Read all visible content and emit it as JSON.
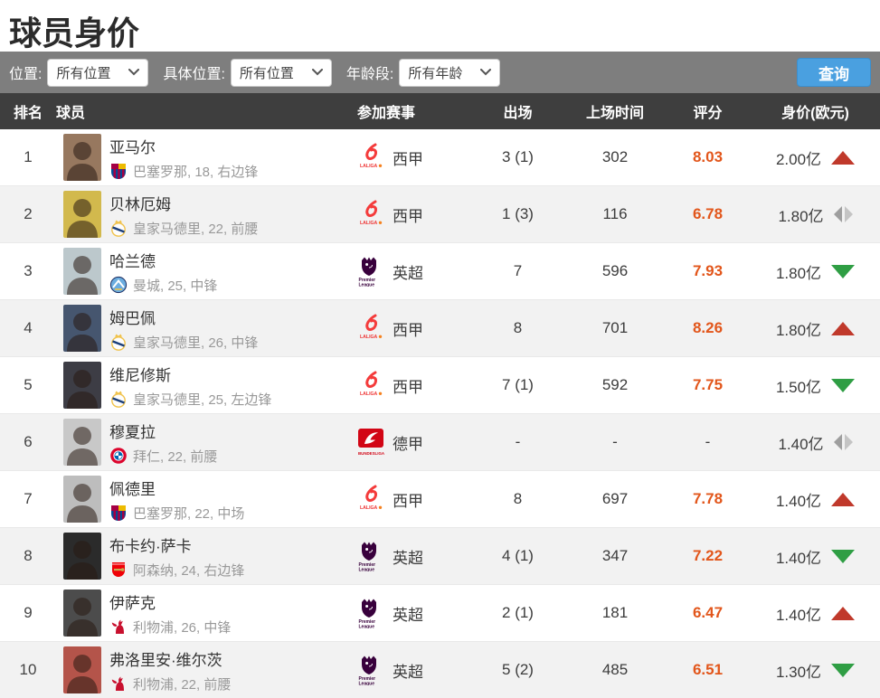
{
  "page": {
    "title": "球员身价"
  },
  "filters": {
    "position": {
      "label": "位置:",
      "value": "所有位置"
    },
    "specific_position": {
      "label": "具体位置:",
      "value": "所有位置"
    },
    "age_group": {
      "label": "年龄段:",
      "value": "所有年龄"
    },
    "query_button_label": "查询"
  },
  "table": {
    "headers": [
      "排名",
      "球员",
      "参加赛事",
      "出场",
      "上场时间",
      "评分",
      "身价(欧元)"
    ],
    "rows": [
      {
        "rank": "1",
        "name": "亚马尔",
        "club_badge": "barcelona",
        "club_info": "巴塞罗那, 18, 右边锋",
        "league_logo": "laliga",
        "league": "西甲",
        "apps": "3 (1)",
        "minutes": "302",
        "rating": "8.03",
        "value": "2.00亿",
        "trend": "up",
        "photo_bg": "#97785f"
      },
      {
        "rank": "2",
        "name": "贝林厄姆",
        "club_badge": "real-madrid",
        "club_info": "皇家马德里, 22, 前腰",
        "league_logo": "laliga",
        "league": "西甲",
        "apps": "1 (3)",
        "minutes": "116",
        "rating": "6.78",
        "value": "1.80亿",
        "trend": "flat",
        "photo_bg": "#d2b94d"
      },
      {
        "rank": "3",
        "name": "哈兰德",
        "club_badge": "man-city",
        "club_info": "曼城, 25, 中锋",
        "league_logo": "premier-league",
        "league": "英超",
        "apps": "7",
        "minutes": "596",
        "rating": "7.93",
        "value": "1.80亿",
        "trend": "down",
        "photo_bg": "#bcc8cc"
      },
      {
        "rank": "4",
        "name": "姆巴佩",
        "club_badge": "real-madrid",
        "club_info": "皇家马德里, 26, 中锋",
        "league_logo": "laliga",
        "league": "西甲",
        "apps": "8",
        "minutes": "701",
        "rating": "8.26",
        "value": "1.80亿",
        "trend": "up",
        "photo_bg": "#46566f"
      },
      {
        "rank": "5",
        "name": "维尼修斯",
        "club_badge": "real-madrid",
        "club_info": "皇家马德里, 25, 左边锋",
        "league_logo": "laliga",
        "league": "西甲",
        "apps": "7 (1)",
        "minutes": "592",
        "rating": "7.75",
        "value": "1.50亿",
        "trend": "down",
        "photo_bg": "#3d3d45"
      },
      {
        "rank": "6",
        "name": "穆夏拉",
        "club_badge": "bayern",
        "club_info": "拜仁, 22, 前腰",
        "league_logo": "bundesliga",
        "league": "德甲",
        "apps": "-",
        "minutes": "-",
        "rating": "-",
        "value": "1.40亿",
        "trend": "flat",
        "photo_bg": "#c8c8c8"
      },
      {
        "rank": "7",
        "name": "佩德里",
        "club_badge": "barcelona",
        "club_info": "巴塞罗那, 22, 中场",
        "league_logo": "laliga",
        "league": "西甲",
        "apps": "8",
        "minutes": "697",
        "rating": "7.78",
        "value": "1.40亿",
        "trend": "up",
        "photo_bg": "#bdbdbd"
      },
      {
        "rank": "8",
        "name": "布卡约·萨卡",
        "club_badge": "arsenal",
        "club_info": "阿森纳, 24, 右边锋",
        "league_logo": "premier-league",
        "league": "英超",
        "apps": "4 (1)",
        "minutes": "347",
        "rating": "7.22",
        "value": "1.40亿",
        "trend": "down",
        "photo_bg": "#2b2b2b"
      },
      {
        "rank": "9",
        "name": "伊萨克",
        "club_badge": "liverpool",
        "club_info": "利物浦, 26, 中锋",
        "league_logo": "premier-league",
        "league": "英超",
        "apps": "2 (1)",
        "minutes": "181",
        "rating": "6.47",
        "value": "1.40亿",
        "trend": "up",
        "photo_bg": "#4c4c4c"
      },
      {
        "rank": "10",
        "name": "弗洛里安·维尔茨",
        "club_badge": "liverpool",
        "club_info": "利物浦, 22, 前腰",
        "league_logo": "premier-league",
        "league": "英超",
        "apps": "5 (2)",
        "minutes": "485",
        "rating": "6.51",
        "value": "1.30亿",
        "trend": "down",
        "photo_bg": "#b4544a"
      }
    ]
  },
  "colors": {
    "accent_blue": "#4aa0e0",
    "rating_orange": "#e2561b",
    "trend_up_red": "#c0392b",
    "trend_down_green": "#2f9e44",
    "trend_flat_gray": "#a8a8a8",
    "header_dark": "#3e3e3e",
    "filter_bar_gray": "#7e7e7e",
    "row_alt_gray": "#f2f2f2"
  }
}
